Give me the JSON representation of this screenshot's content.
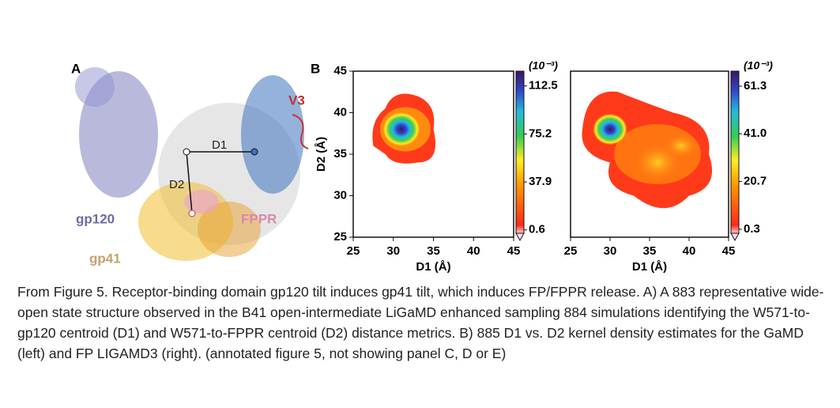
{
  "panel_a": {
    "label": "A",
    "labels": {
      "v3": "V3",
      "d1": "D1",
      "d2": "D2",
      "gp120": "gp120",
      "fppr": "FPPR",
      "gp41": "gp41"
    }
  },
  "panel_b": {
    "label": "B",
    "charts": [
      {
        "type": "density",
        "xlabel": "D1 (Å)",
        "ylabel": "D2 (Å)",
        "xlim": [
          25,
          45
        ],
        "xticks": [
          25,
          30,
          35,
          40,
          45
        ],
        "ylim": [
          25,
          45
        ],
        "yticks": [
          25,
          30,
          35,
          40,
          45
        ],
        "colorbar_label": "(10⁻³)",
        "clim": [
          -2,
          124
        ],
        "cticks": [
          0.6,
          37.9,
          75.2,
          112.5
        ]
      },
      {
        "type": "density",
        "xlabel": "D1 (Å)",
        "xlim": [
          25,
          45
        ],
        "xticks": [
          25,
          30,
          35,
          40,
          45
        ],
        "ylim": [
          25,
          45
        ],
        "colorbar_label": "(10⁻³)",
        "clim": [
          -1.4,
          67.7
        ],
        "cticks": [
          0.3,
          20.7,
          {
            "value": 41,
            "label": "41.0"
          },
          61.3
        ]
      }
    ]
  },
  "caption": "From Figure 5. Receptor-binding domain gp120 tilt induces gp41 tilt, which induces FP/FPPR release. A) A 883 representative wide-open state structure observed in the B41 open-intermediate LiGaMD enhanced sampling 884 simulations identifying the W571-to-gp120 centroid (D1) and W571-to-FPPR centroid (D2) distance metrics. B) 885 D1 vs. D2 kernel density estimates for the GaMD (left) and FP LIGAMD3 (right). (annotated figure 5, not showing panel C, D or E)"
}
